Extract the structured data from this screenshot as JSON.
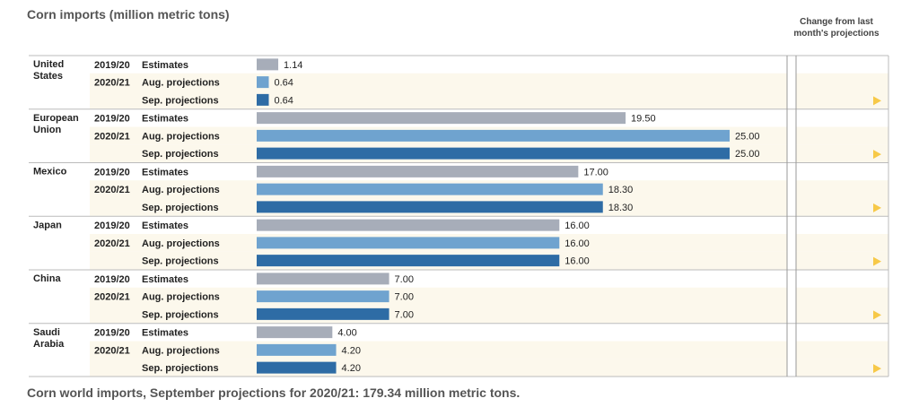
{
  "title": "Corn imports (million metric tons)",
  "change_header": "Change from last month's projections",
  "footnote": "Corn world imports, September projections for 2020/21: 179.34 million metric tons.",
  "colors": {
    "estimates": "#a7adb9",
    "aug": "#6fa3cf",
    "sep": "#2e6ca5",
    "stripe": "#fcf8ec",
    "arrow": "#f7c948",
    "rule": "#999999"
  },
  "chart_data": {
    "type": "bar",
    "orientation": "horizontal",
    "title": "Corn imports (million metric tons)",
    "xlim": [
      0,
      25
    ],
    "groups": [
      {
        "country": "United States",
        "rows": [
          {
            "year": "2019/20",
            "label": "Estimates",
            "kind": "estimates",
            "value": 1.14,
            "value_label": "1.14"
          },
          {
            "year": "2020/21",
            "label": "Aug. projections",
            "kind": "aug",
            "value": 0.64,
            "value_label": "0.64"
          },
          {
            "year": "",
            "label": "Sep. projections",
            "kind": "sep",
            "value": 0.64,
            "value_label": "0.64",
            "change": "unchanged"
          }
        ]
      },
      {
        "country": "European Union",
        "rows": [
          {
            "year": "2019/20",
            "label": "Estimates",
            "kind": "estimates",
            "value": 19.5,
            "value_label": "19.50"
          },
          {
            "year": "2020/21",
            "label": "Aug. projections",
            "kind": "aug",
            "value": 25.0,
            "value_label": "25.00"
          },
          {
            "year": "",
            "label": "Sep. projections",
            "kind": "sep",
            "value": 25.0,
            "value_label": "25.00",
            "change": "unchanged"
          }
        ]
      },
      {
        "country": "Mexico",
        "rows": [
          {
            "year": "2019/20",
            "label": "Estimates",
            "kind": "estimates",
            "value": 17.0,
            "value_label": "17.00"
          },
          {
            "year": "2020/21",
            "label": "Aug. projections",
            "kind": "aug",
            "value": 18.3,
            "value_label": "18.30"
          },
          {
            "year": "",
            "label": "Sep. projections",
            "kind": "sep",
            "value": 18.3,
            "value_label": "18.30",
            "change": "unchanged"
          }
        ]
      },
      {
        "country": "Japan",
        "rows": [
          {
            "year": "2019/20",
            "label": "Estimates",
            "kind": "estimates",
            "value": 16.0,
            "value_label": "16.00"
          },
          {
            "year": "2020/21",
            "label": "Aug. projections",
            "kind": "aug",
            "value": 16.0,
            "value_label": "16.00"
          },
          {
            "year": "",
            "label": "Sep. projections",
            "kind": "sep",
            "value": 16.0,
            "value_label": "16.00",
            "change": "unchanged"
          }
        ]
      },
      {
        "country": "China",
        "rows": [
          {
            "year": "2019/20",
            "label": "Estimates",
            "kind": "estimates",
            "value": 7.0,
            "value_label": "7.00"
          },
          {
            "year": "2020/21",
            "label": "Aug. projections",
            "kind": "aug",
            "value": 7.0,
            "value_label": "7.00"
          },
          {
            "year": "",
            "label": "Sep. projections",
            "kind": "sep",
            "value": 7.0,
            "value_label": "7.00",
            "change": "unchanged"
          }
        ]
      },
      {
        "country": "Saudi Arabia",
        "rows": [
          {
            "year": "2019/20",
            "label": "Estimates",
            "kind": "estimates",
            "value": 4.0,
            "value_label": "4.00"
          },
          {
            "year": "2020/21",
            "label": "Aug. projections",
            "kind": "aug",
            "value": 4.2,
            "value_label": "4.20"
          },
          {
            "year": "",
            "label": "Sep. projections",
            "kind": "sep",
            "value": 4.2,
            "value_label": "4.20",
            "change": "unchanged"
          }
        ]
      }
    ]
  }
}
